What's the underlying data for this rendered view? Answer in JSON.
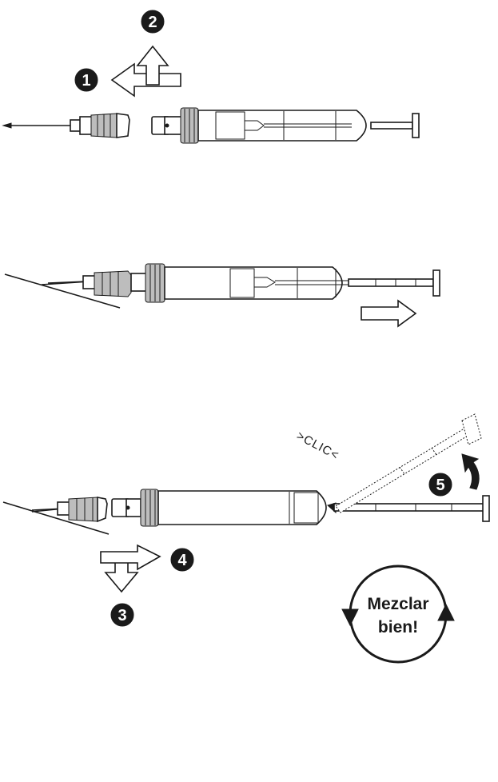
{
  "steps": [
    "1",
    "2",
    "3",
    "4",
    "5"
  ],
  "click_text": ">CLIC<",
  "mix_label": {
    "line1": "Mezclar",
    "line2": "bien!"
  }
}
